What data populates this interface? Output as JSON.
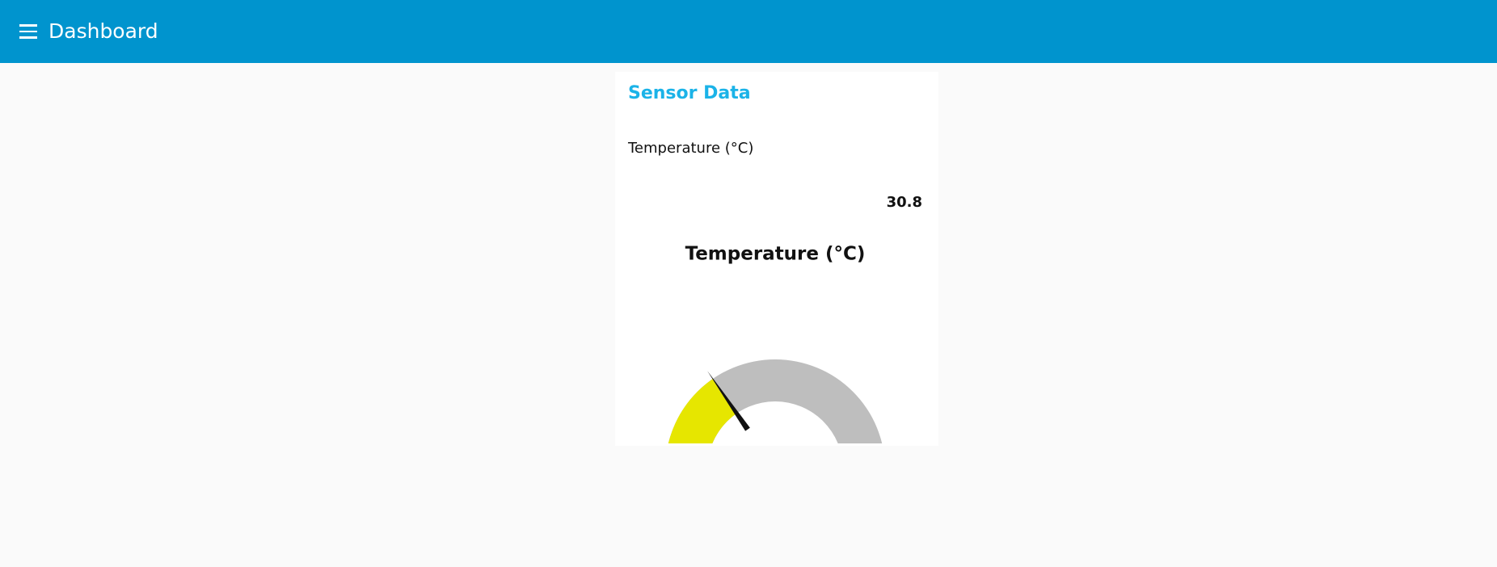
{
  "header": {
    "title": "Dashboard"
  },
  "group": {
    "title": "Sensor Data",
    "text_widget": {
      "label": "Temperature (°C)",
      "value": 30.8
    },
    "gauge": {
      "title": "Temperature (°C)",
      "value": 30.8,
      "units": "°C",
      "min": 0,
      "max": 100,
      "color": "#e6e600",
      "track_color": "#bebebe"
    }
  }
}
